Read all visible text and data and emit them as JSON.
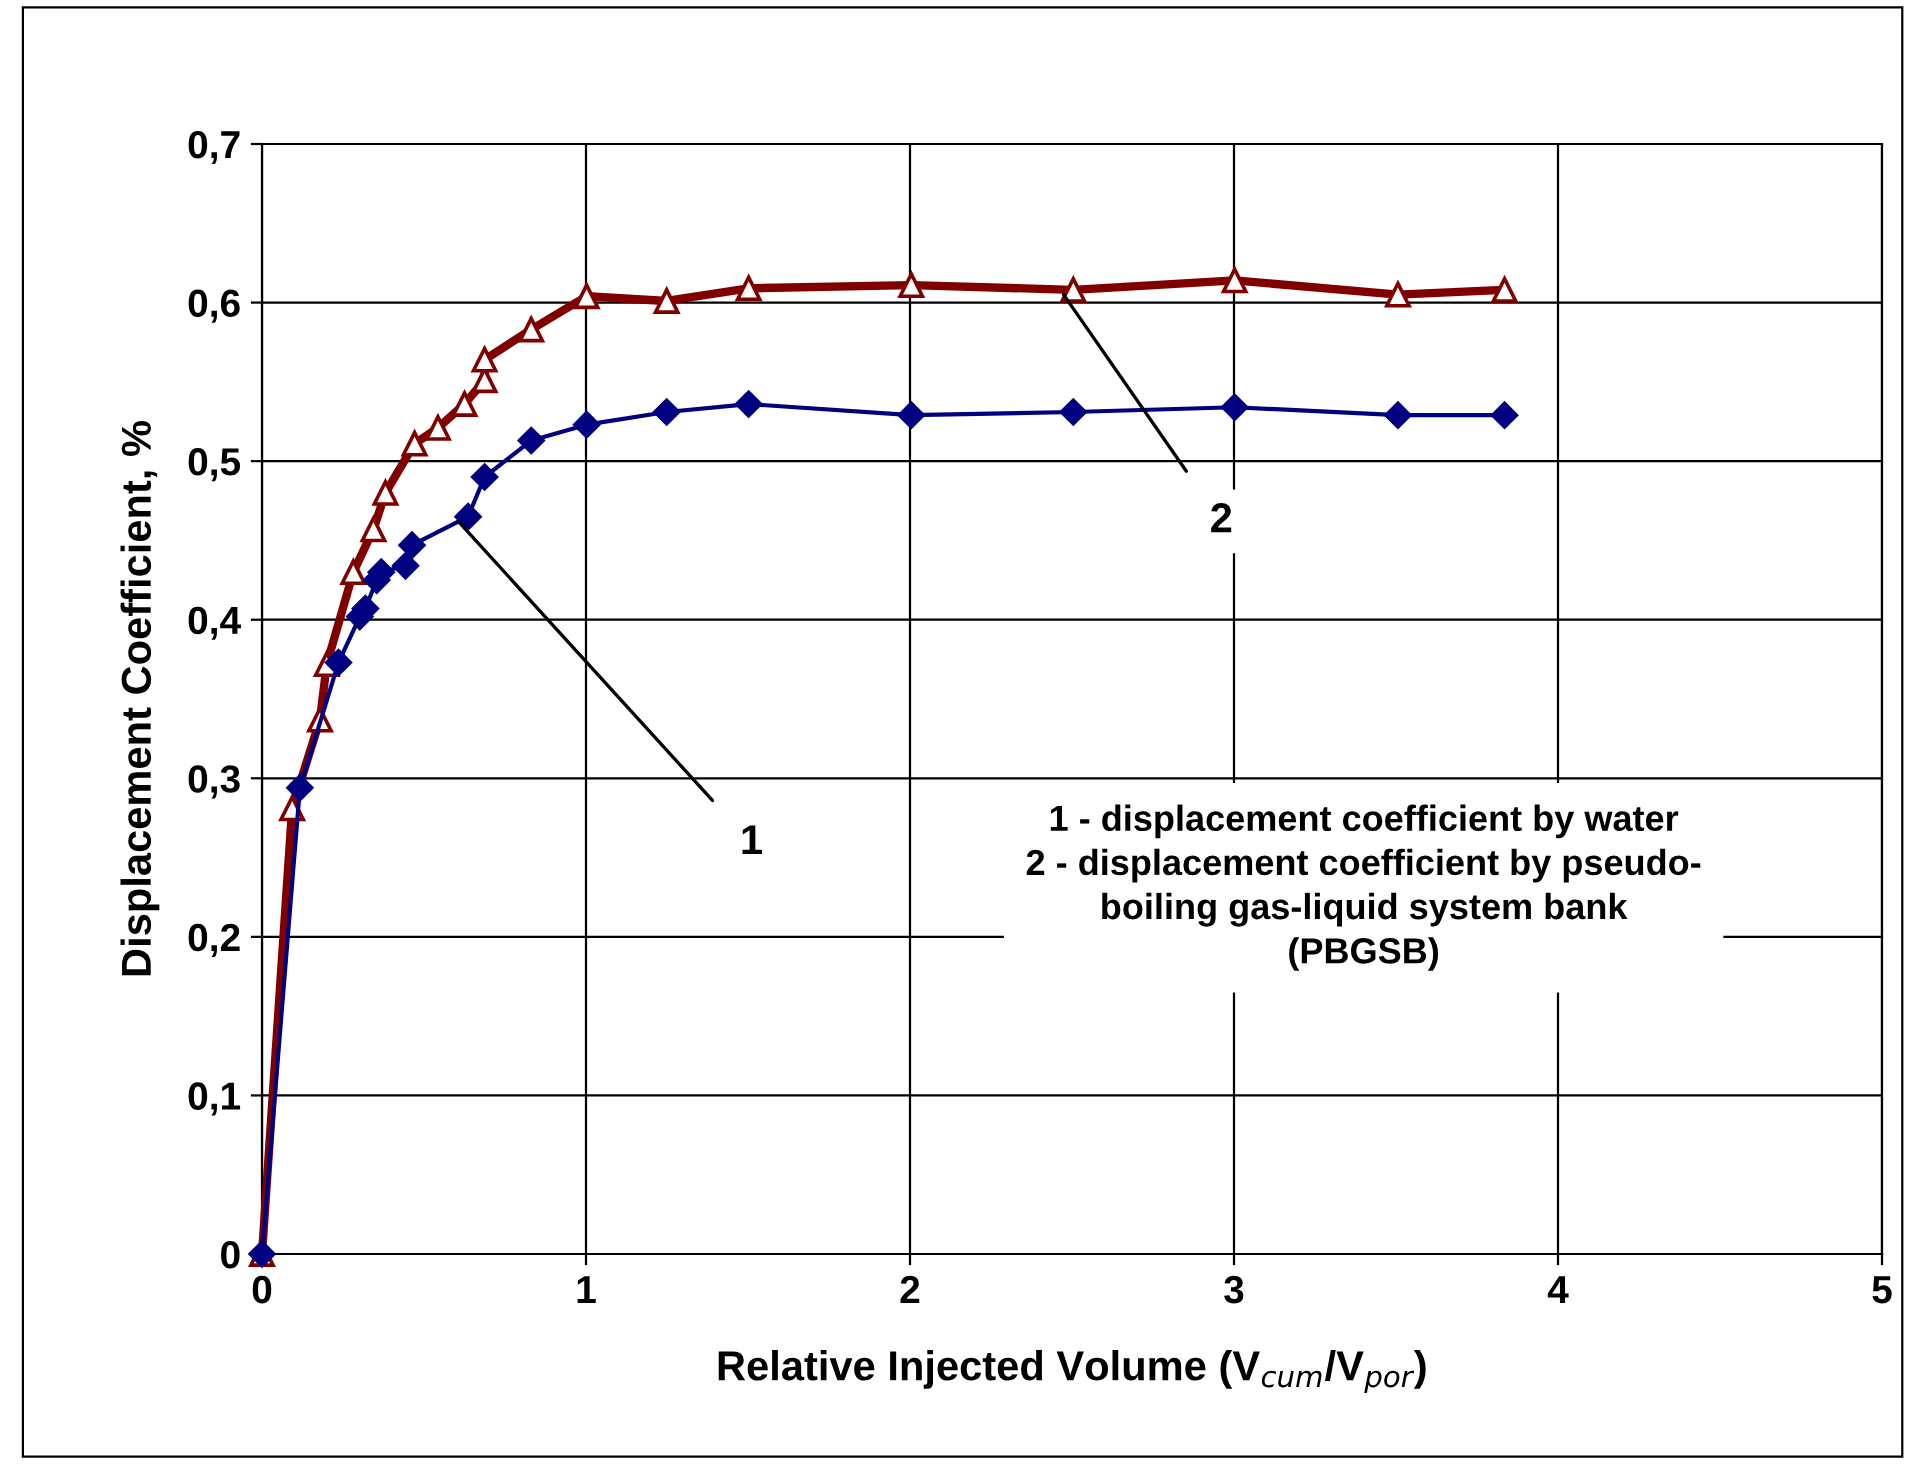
{
  "chart_data": {
    "type": "line",
    "xlabel": "Relative Injected Volume (V$_{cum}$/V$_{por}$)",
    "ylabel": "Displacement Coefficient, %",
    "series": [
      {
        "name": "1",
        "color": "#000080",
        "marker": "diamond",
        "x": [
          0,
          0.117,
          0.236,
          0.302,
          0.319,
          0.354,
          0.368,
          0.443,
          0.463,
          0.636,
          0.687,
          0.831,
          1.002,
          1.249,
          1.502,
          2.004,
          2.504,
          3.002,
          3.506,
          3.835
        ],
        "values": [
          0,
          0.294,
          0.373,
          0.402,
          0.407,
          0.425,
          0.43,
          0.434,
          0.447,
          0.465,
          0.49,
          0.513,
          0.523,
          0.531,
          0.536,
          0.529,
          0.531,
          0.534,
          0.529,
          0.529
        ]
      },
      {
        "name": "2",
        "color": "#800000",
        "marker": "triangle",
        "x": [
          0,
          0.093,
          0.179,
          0.2,
          0.282,
          0.344,
          0.381,
          0.471,
          0.543,
          0.625,
          0.687,
          0.687,
          0.831,
          1.002,
          1.249,
          1.502,
          2.004,
          2.504,
          3.002,
          3.506,
          3.835
        ],
        "values": [
          0,
          0.281,
          0.337,
          0.372,
          0.43,
          0.457,
          0.48,
          0.511,
          0.521,
          0.536,
          0.551,
          0.564,
          0.583,
          0.604,
          0.601,
          0.609,
          0.611,
          0.608,
          0.614,
          0.605,
          0.608
        ]
      }
    ],
    "annotations": [
      "1 - displacement coefficient by water\n2 - displacement coefficient by pseudo-\nboiling gas-liquid system bank\n(PBGSB)"
    ],
    "xlim": [
      0,
      5
    ],
    "xticks": [
      0,
      1,
      2,
      3,
      4,
      5
    ],
    "ylim": [
      0,
      0.7
    ],
    "yticks": [
      0,
      {
        "value": 0.1,
        "label": "0,1"
      },
      {
        "value": 0.2,
        "label": "0,2"
      },
      {
        "value": 0.3,
        "label": "0,3"
      },
      {
        "value": 0.4,
        "label": "0,4"
      },
      {
        "value": 0.5,
        "label": "0,5"
      },
      {
        "value": 0.6,
        "label": "0,6"
      },
      {
        "value": 0.7,
        "label": "0,7"
      }
    ],
    "grid": true,
    "legend": false
  }
}
